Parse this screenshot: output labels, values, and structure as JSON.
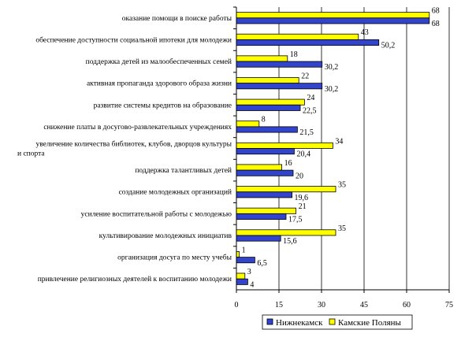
{
  "chart_data": {
    "type": "bar",
    "orientation": "horizontal",
    "categories": [
      "оказание помощи в поиске работы",
      "обеспечение доступности социальной ипотеки для молодежи",
      "поддержка детей из малообеспеченных семей",
      "активная пропаганда здорового образа жизни",
      "развитие системы кредитов на образование",
      "снижение платы в досугово-развлекательных учреждениях",
      [
        "увеличение количества библиотек, клубов, дворцов культуры",
        "и спорта"
      ],
      "поддержка талантливых детей",
      "создание молодежных организаций",
      "усиление воспитательной работы с молодежью",
      "культивирование молодежных инициатив",
      "организация досуга по месту учебы",
      "привлечение религиозных деятелей к воспитанию молодежи"
    ],
    "series": [
      {
        "name": "Нижнекамск",
        "color": "#3344cc",
        "values": [
          68,
          50.2,
          30.2,
          30.2,
          22.5,
          21.5,
          20.4,
          20,
          19.6,
          17.5,
          15.6,
          6.5,
          4
        ],
        "labels": [
          "68",
          "50,2",
          "30,2",
          "30,2",
          "22,5",
          "21,5",
          "20,4",
          "20",
          "19,6",
          "17,5",
          "15,6",
          "6,5",
          "4"
        ]
      },
      {
        "name": "Камские Поляны",
        "color": "#ffff00",
        "values": [
          68,
          43,
          18,
          22,
          24,
          8,
          34,
          16,
          35,
          21,
          35,
          1,
          3
        ],
        "labels": [
          "68",
          "43",
          "18",
          "22",
          "24",
          "8",
          "34",
          "16",
          "35",
          "21",
          "35",
          "1",
          "3"
        ]
      }
    ],
    "xlim": [
      0,
      75
    ],
    "x_ticks": [
      "0",
      "15",
      "30",
      "45",
      "60",
      "75"
    ],
    "x_tick_values": [
      0,
      15,
      30,
      45,
      60,
      75
    ],
    "grid": "vertical",
    "legend_position": "bottom-right"
  }
}
